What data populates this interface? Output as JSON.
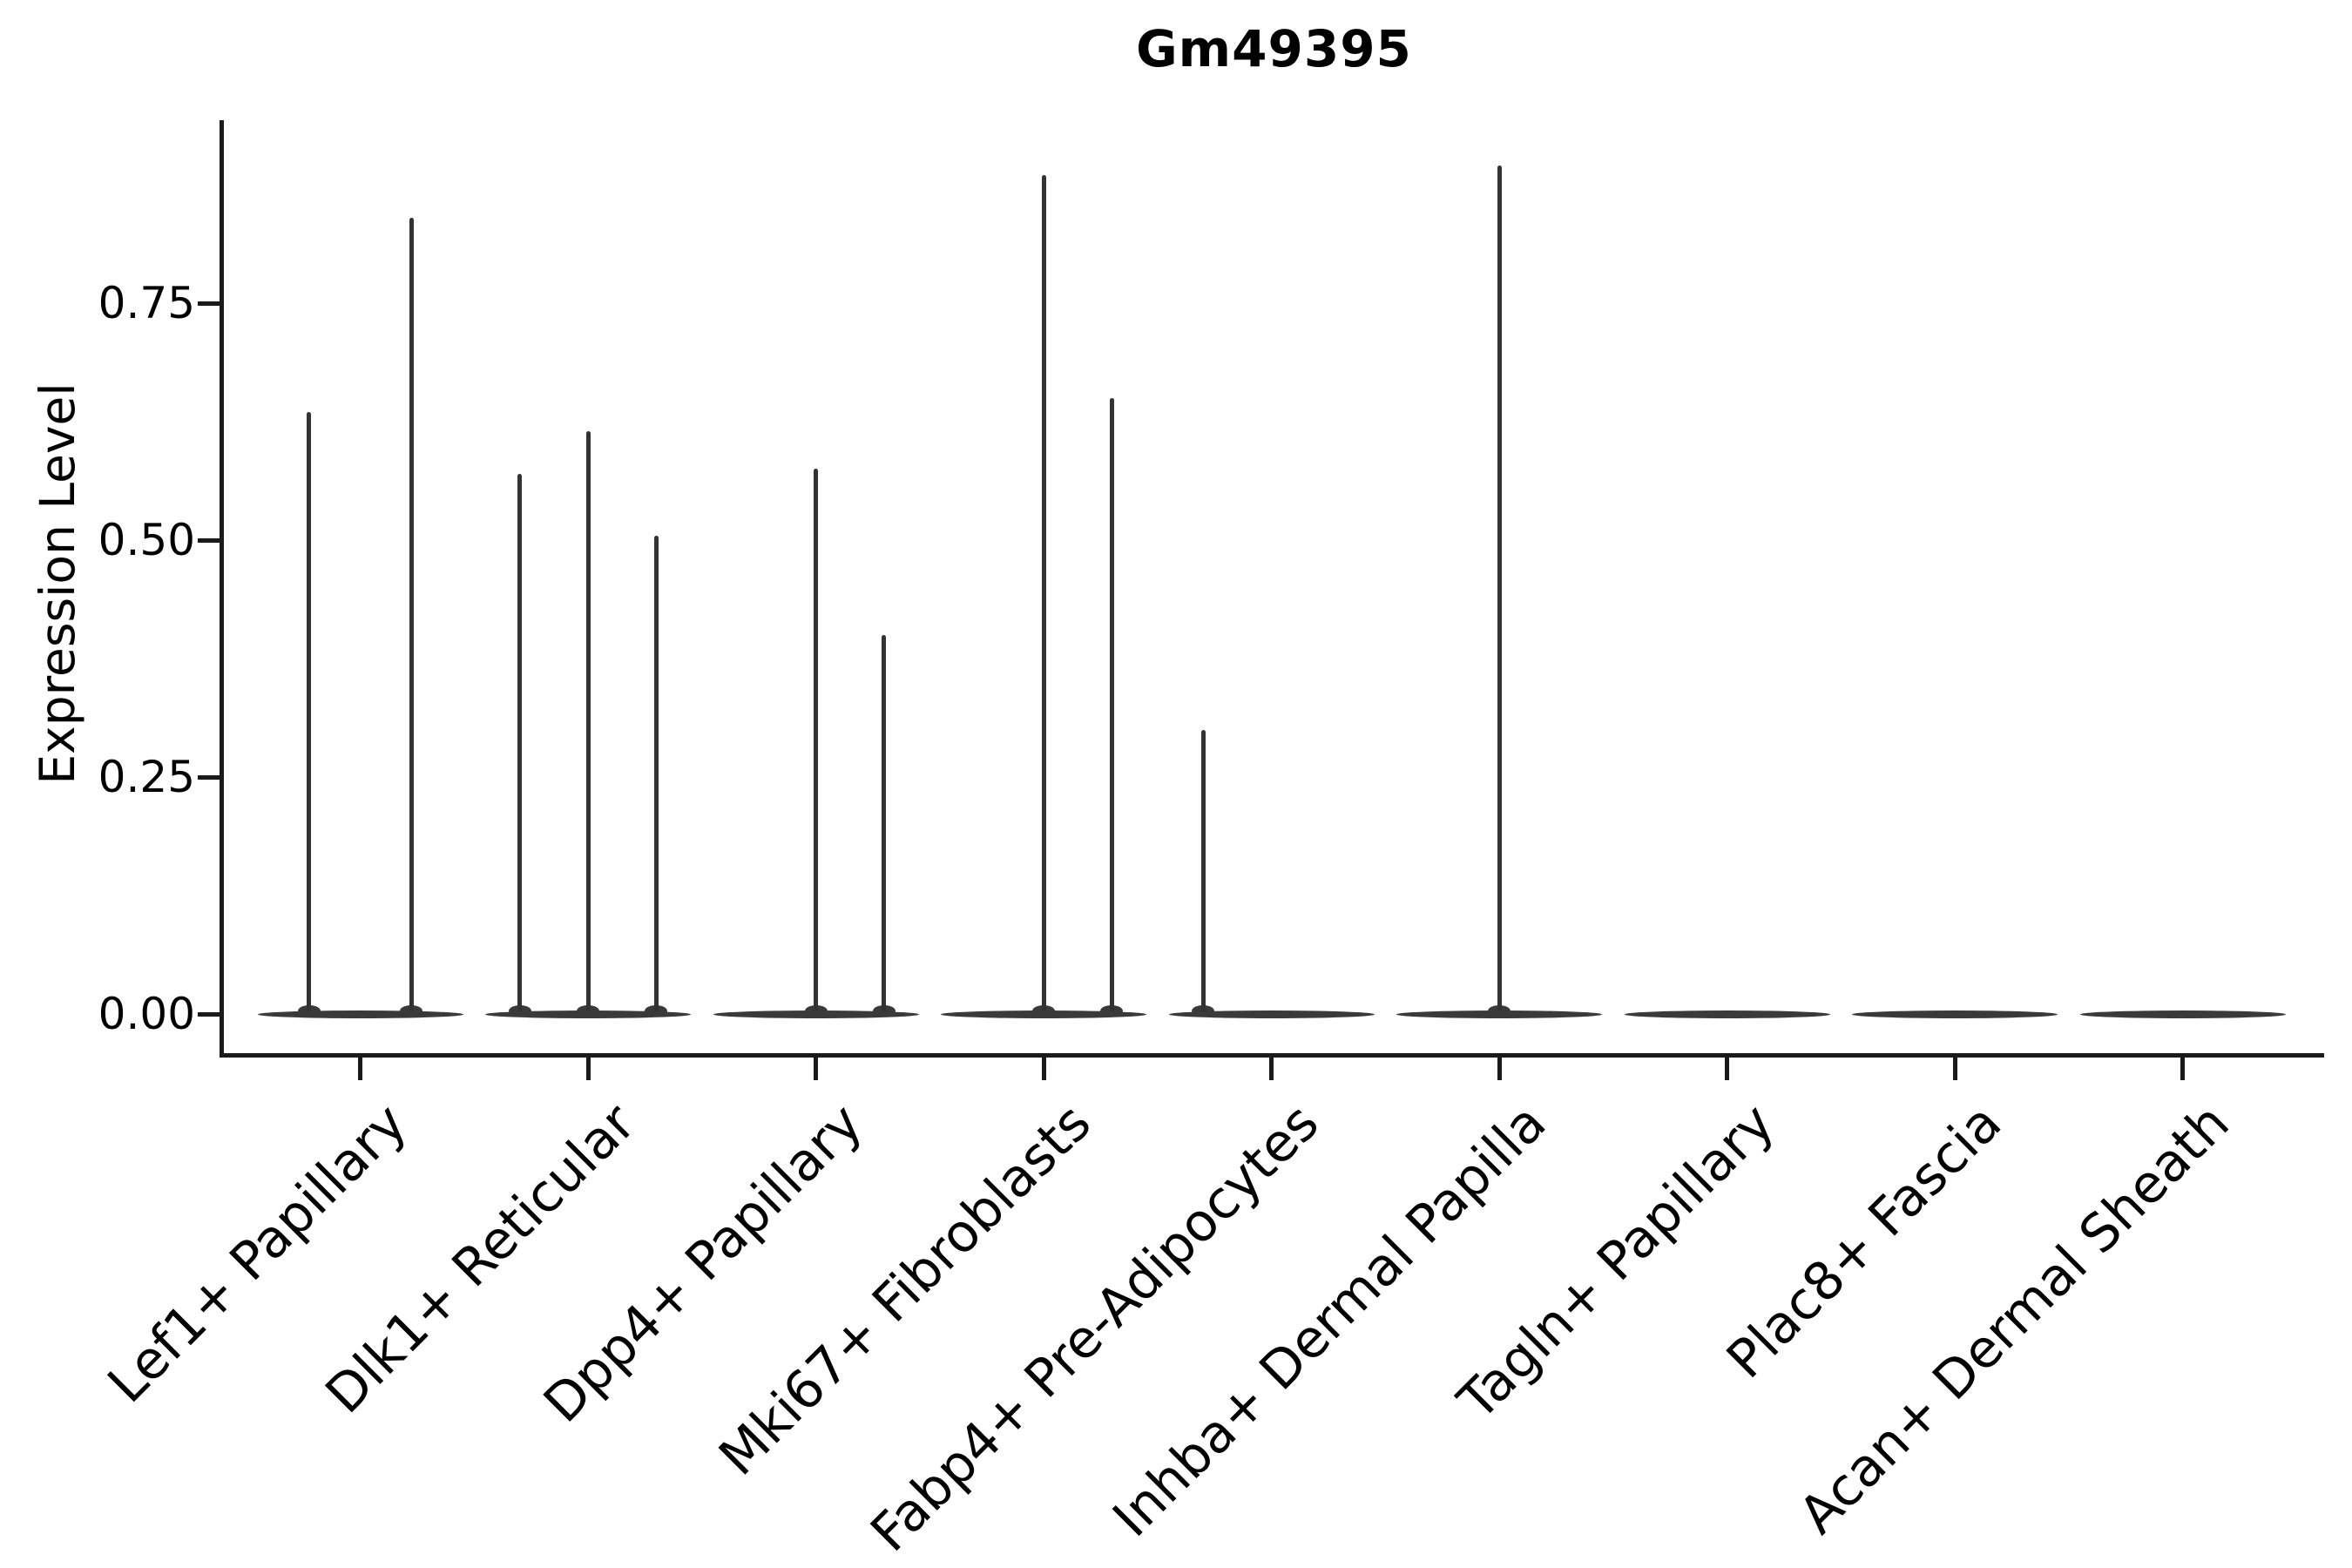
{
  "figure": {
    "title": "Gm49395"
  },
  "chart_data": {
    "type": "violin",
    "title": "Gm49395",
    "xlabel": "",
    "ylabel": "Expression Level",
    "grid": false,
    "legend_position": "none",
    "ylim": [
      -0.043,
      0.94
    ],
    "y_ticks": [
      {
        "value": 0.0,
        "label": "0.00"
      },
      {
        "value": 0.25,
        "label": "0.25"
      },
      {
        "value": 0.5,
        "label": "0.50"
      },
      {
        "value": 0.75,
        "label": "0.75"
      }
    ],
    "categories": [
      "Lef1+ Papillary",
      "Dlk1+ Reticular",
      "Dpp4+ Papillary",
      "Mki67+ Fibroblasts",
      "Fabp4+ Pre-Adipocytes",
      "Inhba+ Dermal Papilla",
      "Tagln+ Papillary",
      "Plac8+ Fascia",
      "Acan+ Dermal Sheath"
    ],
    "violins": [
      {
        "category": "Lef1+ Papillary",
        "baseline_value": 0,
        "spikes": [
          {
            "offset_frac": -0.225,
            "peak": 0.635
          },
          {
            "offset_frac": 0.225,
            "peak": 0.84
          }
        ]
      },
      {
        "category": "Dlk1+ Reticular",
        "baseline_value": 0,
        "spikes": [
          {
            "offset_frac": -0.3,
            "peak": 0.57
          },
          {
            "offset_frac": 0.0,
            "peak": 0.615
          },
          {
            "offset_frac": 0.3,
            "peak": 0.505
          }
        ]
      },
      {
        "category": "Dpp4+ Papillary",
        "baseline_value": 0,
        "spikes": [
          {
            "offset_frac": 0.0,
            "peak": 0.575
          },
          {
            "offset_frac": 0.3,
            "peak": 0.4
          }
        ]
      },
      {
        "category": "Mki67+ Fibroblasts",
        "baseline_value": 0,
        "spikes": [
          {
            "offset_frac": 0.0,
            "peak": 0.885
          },
          {
            "offset_frac": 0.3,
            "peak": 0.65
          }
        ]
      },
      {
        "category": "Fabp4+ Pre-Adipocytes",
        "baseline_value": 0,
        "spikes": [
          {
            "offset_frac": -0.3,
            "peak": 0.3
          }
        ]
      },
      {
        "category": "Inhba+ Dermal Papilla",
        "baseline_value": 0,
        "spikes": [
          {
            "offset_frac": 0.0,
            "peak": 0.895
          }
        ]
      },
      {
        "category": "Tagln+ Papillary",
        "baseline_value": 0,
        "spikes": []
      },
      {
        "category": "Plac8+ Fascia",
        "baseline_value": 0,
        "spikes": []
      },
      {
        "category": "Acan+ Dermal Sheath",
        "baseline_value": 0,
        "spikes": []
      }
    ],
    "colors": {
      "violin_line": "#333333",
      "violin_fill": "#3a3a3a",
      "axis": "#1a1a1a",
      "text": "#000000",
      "background": "#ffffff"
    }
  }
}
